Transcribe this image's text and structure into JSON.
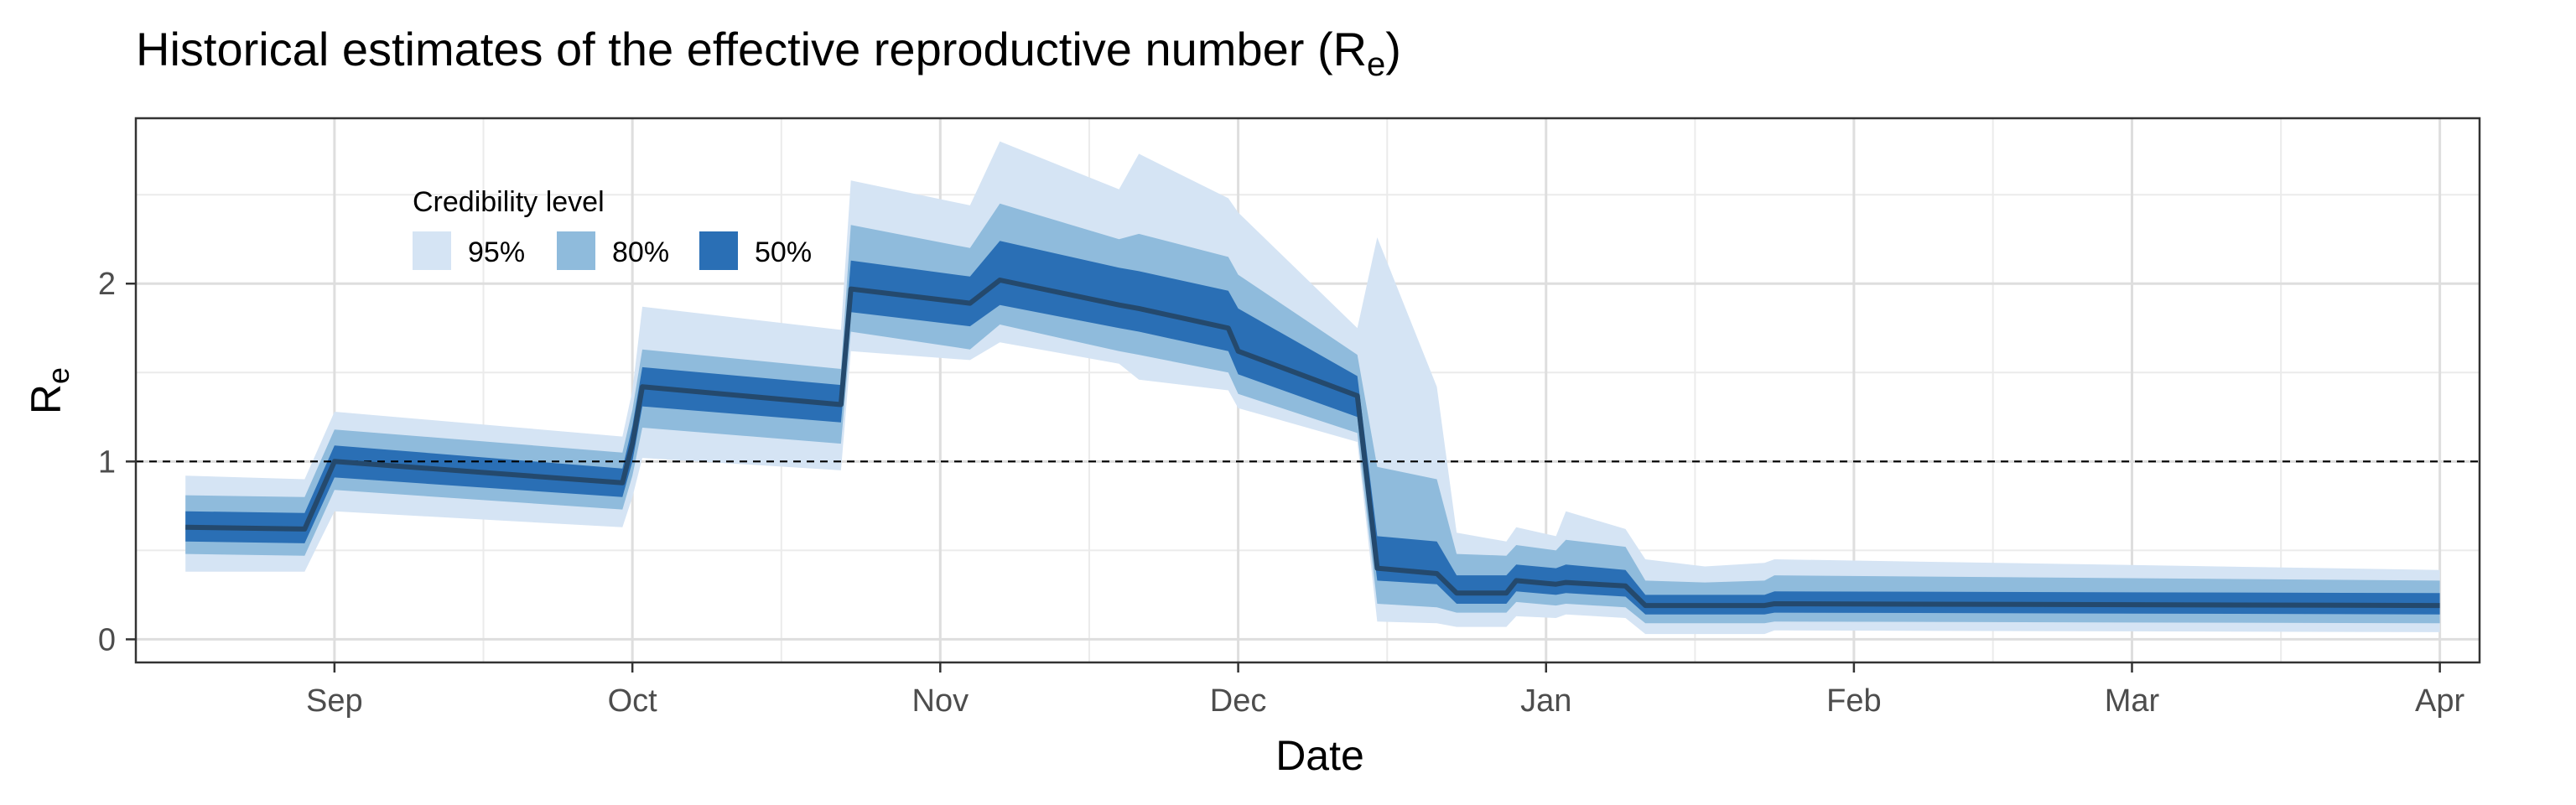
{
  "chart_data": {
    "type": "area",
    "title": "Historical estimates of the effective reproductive number (R",
    "title_subscript": "e",
    "title_suffix": ")",
    "xlabel": "Date",
    "ylabel": "R",
    "ylabel_subscript": "e",
    "x_ticks": [
      "Sep",
      "Oct",
      "Nov",
      "Dec",
      "Jan",
      "Feb",
      "Mar",
      "Apr"
    ],
    "x_tick_dates": [
      "2020-09-01",
      "2020-10-01",
      "2020-11-01",
      "2020-12-01",
      "2021-01-01",
      "2021-02-01",
      "2021-03-01",
      "2021-04-01"
    ],
    "y_ticks": [
      "0",
      "1",
      "2"
    ],
    "y_tick_values": [
      0,
      1,
      2
    ],
    "xlim": [
      "2020-08-12",
      "2021-04-05"
    ],
    "ylim": [
      -0.13,
      2.93
    ],
    "reference_line": {
      "y": 1,
      "style": "dashed"
    },
    "grid": true,
    "legend": {
      "title": "Credibility level",
      "position": "top-left",
      "items": [
        {
          "label": "95%",
          "color": "#d5e4f4"
        },
        {
          "label": "80%",
          "color": "#8fbbdc"
        },
        {
          "label": "50%",
          "color": "#2a6fb5"
        }
      ]
    },
    "median_color": "#24496d",
    "series": [
      {
        "x": [
          "2020-08-17",
          "2020-08-29",
          "2020-09-01",
          "2020-09-30",
          "2020-10-01",
          "2020-10-02",
          "2020-10-22",
          "2020-10-23",
          "2020-11-04",
          "2020-11-07",
          "2020-11-19",
          "2020-11-21",
          "2020-11-30",
          "2020-12-01",
          "2020-12-13",
          "2020-12-15",
          "2020-12-21",
          "2020-12-23",
          "2020-12-28",
          "2020-12-29",
          "2021-01-02",
          "2021-01-03",
          "2021-01-09",
          "2021-01-11",
          "2021-01-17",
          "2021-01-23",
          "2021-01-24",
          "2021-04-01"
        ],
        "median": [
          0.63,
          0.62,
          1.0,
          0.88,
          1.1,
          1.42,
          1.32,
          1.97,
          1.89,
          2.02,
          1.88,
          1.86,
          1.75,
          1.62,
          1.37,
          0.4,
          0.37,
          0.26,
          0.26,
          0.33,
          0.31,
          0.32,
          0.3,
          0.19,
          0.19,
          0.19,
          0.2,
          0.19
        ],
        "lo50": [
          0.55,
          0.54,
          0.91,
          0.8,
          1.0,
          1.31,
          1.22,
          1.84,
          1.76,
          1.88,
          1.75,
          1.73,
          1.62,
          1.49,
          1.25,
          0.33,
          0.31,
          0.2,
          0.2,
          0.27,
          0.25,
          0.26,
          0.24,
          0.14,
          0.14,
          0.14,
          0.15,
          0.14
        ],
        "hi50": [
          0.72,
          0.71,
          1.09,
          0.96,
          1.2,
          1.53,
          1.43,
          2.13,
          2.04,
          2.24,
          2.09,
          2.07,
          1.96,
          1.86,
          1.48,
          0.58,
          0.55,
          0.36,
          0.36,
          0.42,
          0.4,
          0.42,
          0.39,
          0.25,
          0.25,
          0.25,
          0.27,
          0.26
        ],
        "lo80": [
          0.48,
          0.47,
          0.84,
          0.73,
          0.92,
          1.19,
          1.1,
          1.73,
          1.63,
          1.77,
          1.62,
          1.6,
          1.5,
          1.38,
          1.16,
          0.2,
          0.18,
          0.15,
          0.15,
          0.21,
          0.19,
          0.2,
          0.18,
          0.09,
          0.09,
          0.09,
          0.1,
          0.09
        ],
        "hi80": [
          0.81,
          0.8,
          1.18,
          1.05,
          1.29,
          1.63,
          1.52,
          2.33,
          2.2,
          2.45,
          2.25,
          2.28,
          2.15,
          2.05,
          1.6,
          0.97,
          0.9,
          0.48,
          0.47,
          0.53,
          0.5,
          0.56,
          0.52,
          0.33,
          0.32,
          0.33,
          0.36,
          0.33
        ],
        "lo95": [
          0.38,
          0.38,
          0.72,
          0.63,
          0.8,
          1.02,
          0.95,
          1.62,
          1.57,
          1.67,
          1.55,
          1.46,
          1.4,
          1.3,
          1.11,
          0.1,
          0.09,
          0.07,
          0.07,
          0.13,
          0.12,
          0.14,
          0.12,
          0.03,
          0.03,
          0.03,
          0.05,
          0.04
        ],
        "hi95": [
          0.92,
          0.9,
          1.28,
          1.14,
          1.4,
          1.87,
          1.74,
          2.58,
          2.44,
          2.8,
          2.53,
          2.73,
          2.48,
          2.4,
          1.75,
          2.26,
          1.42,
          0.6,
          0.55,
          0.63,
          0.58,
          0.72,
          0.62,
          0.45,
          0.41,
          0.43,
          0.45,
          0.39
        ]
      }
    ]
  }
}
